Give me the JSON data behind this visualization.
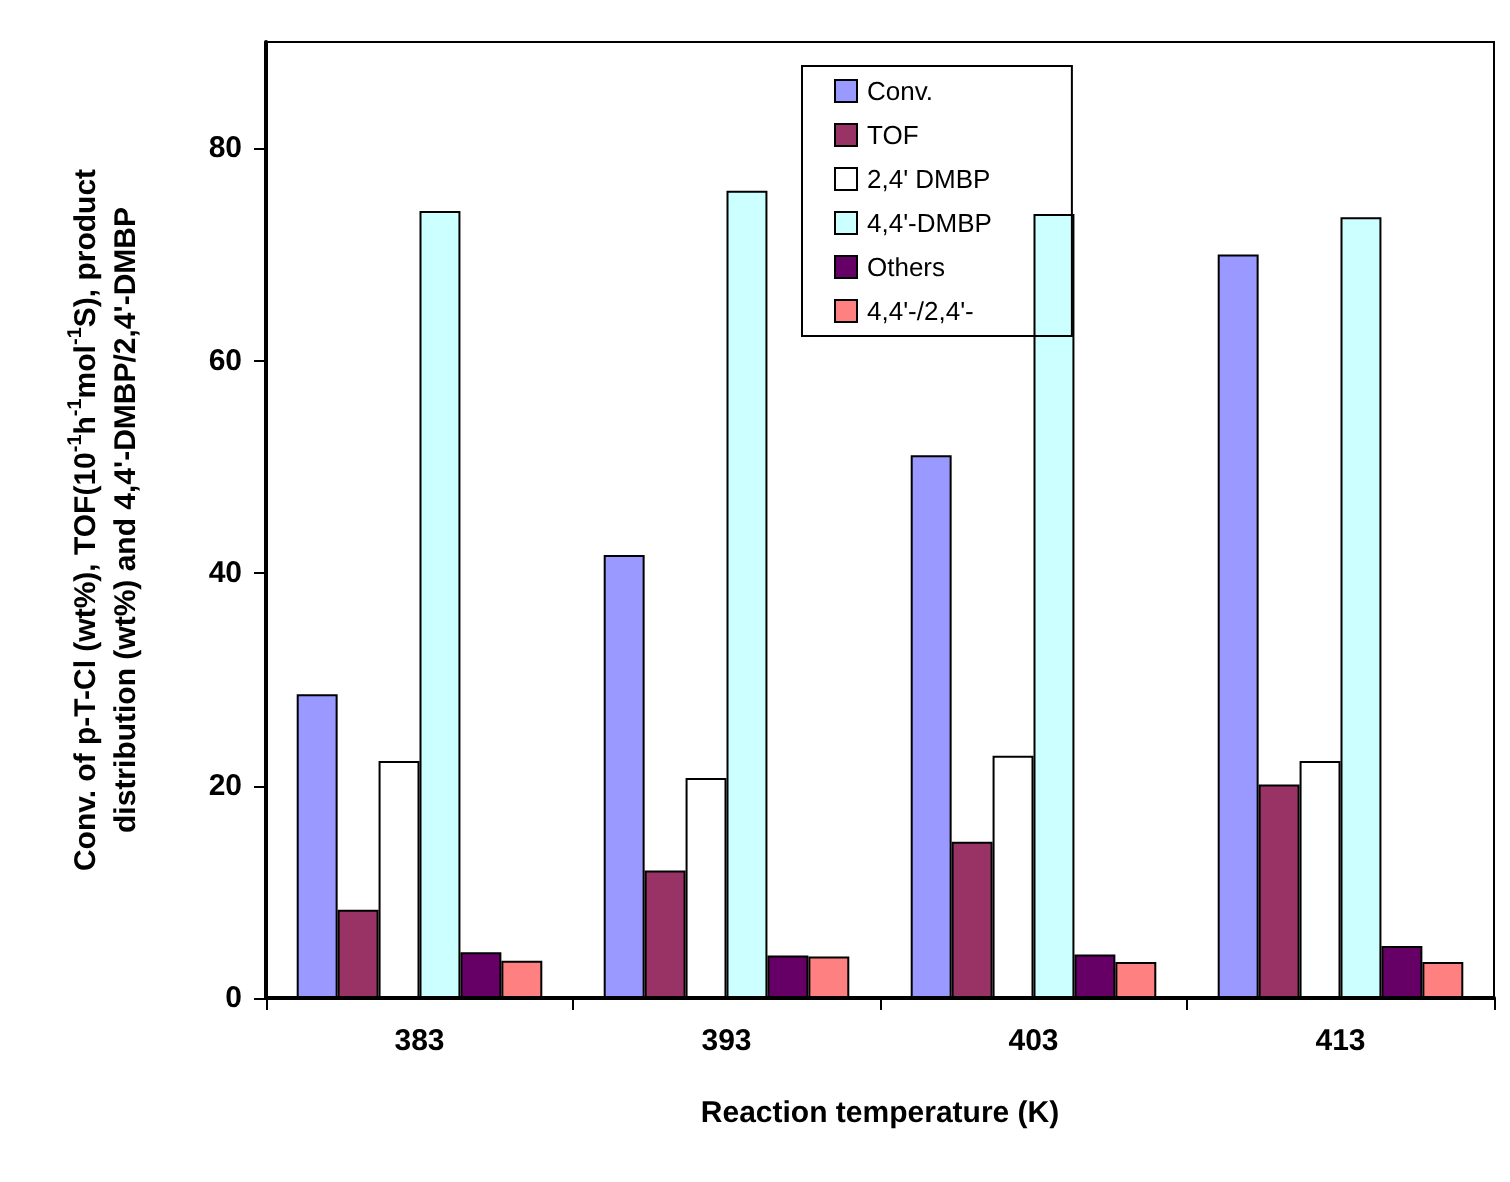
{
  "chart_data": {
    "type": "bar",
    "xlabel": "Reaction temperature (K)",
    "ylabel": "Conv. of p-T-Cl (wt%), TOF(10$^{-1}$h$^{-1}$mol$^{-1}$S), product distribution (wt%) and 4,4'-DMBP/2,4'-DMBP",
    "categories": [
      "383",
      "393",
      "403",
      "413"
    ],
    "series": [
      {
        "name": "Conv.",
        "color": "#9999ff",
        "values": [
          28.6,
          41.7,
          51.1,
          70.0
        ]
      },
      {
        "name": "TOF",
        "color": "#993366",
        "values": [
          8.3,
          12.0,
          14.7,
          20.1
        ]
      },
      {
        "name": "2,4' DMBP",
        "color": "#ffffff",
        "values": [
          22.3,
          20.7,
          22.8,
          22.3
        ]
      },
      {
        "name": "4,4'-DMBP",
        "color": "#ccffff",
        "values": [
          74.1,
          76.0,
          73.8,
          73.5
        ]
      },
      {
        "name": "Others",
        "color": "#660066",
        "values": [
          4.3,
          4.0,
          4.1,
          4.9
        ]
      },
      {
        "name": "4,4'-/2,4'-",
        "color": "#ff8080",
        "values": [
          3.5,
          3.9,
          3.4,
          3.4
        ]
      }
    ],
    "ylim": [
      0,
      90
    ],
    "yticks": [
      0,
      20,
      40,
      60,
      80
    ],
    "grid": false,
    "legend": "top"
  }
}
